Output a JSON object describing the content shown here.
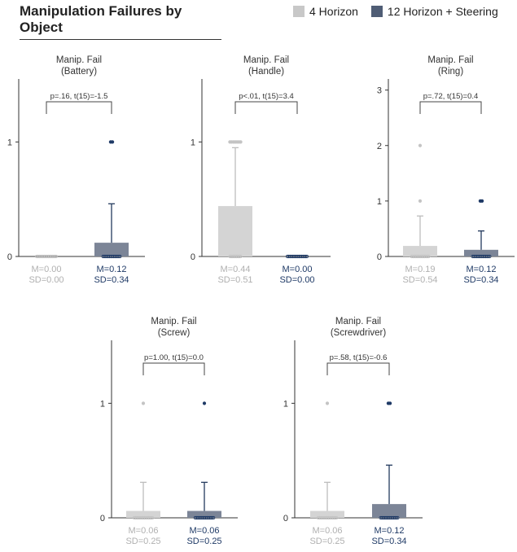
{
  "title": "Manipulation Failures by Object",
  "legend": [
    {
      "label": "4 Horizon",
      "color": "#c8c8c8"
    },
    {
      "label": "12 Horizon + Steering",
      "color": "#4f5d75"
    }
  ],
  "colors": {
    "bar_a": "#d4d4d4",
    "bar_b": "#7c8597",
    "err_a": "#bdbdbd",
    "err_b": "#243a5e",
    "label_a": "#b0b0b0",
    "label_b": "#1f3a66",
    "pt_a": "#c4c4c4",
    "pt_b": "#1f3a66"
  },
  "chart_data": [
    {
      "type": "bar",
      "title": "Manip. Fail\n(Battery)",
      "ylim": [
        0,
        1.55
      ],
      "yticks": [
        0,
        1
      ],
      "stat": "p=.16, t(15)=-1.5",
      "series": [
        {
          "name": "4 Horizon",
          "mean": 0.0,
          "sd": 0.0,
          "m_label": "M=0.00",
          "sd_label": "SD=0.00",
          "points": [
            0,
            0,
            0,
            0,
            0,
            0,
            0,
            0,
            0,
            0,
            0,
            0,
            0,
            0,
            0,
            0
          ]
        },
        {
          "name": "12 Horizon + Steering",
          "mean": 0.12,
          "sd": 0.34,
          "m_label": "M=0.12",
          "sd_label": "SD=0.34",
          "points": [
            1,
            1,
            0,
            0,
            0,
            0,
            0,
            0,
            0,
            0,
            0,
            0,
            0,
            0,
            0,
            0
          ]
        }
      ]
    },
    {
      "type": "bar",
      "title": "Manip. Fail\n(Handle)",
      "ylim": [
        0,
        1.55
      ],
      "yticks": [
        0,
        1
      ],
      "stat": "p<.01, t(15)=3.4",
      "series": [
        {
          "name": "4 Horizon",
          "mean": 0.44,
          "sd": 0.51,
          "m_label": "M=0.44",
          "sd_label": "SD=0.51",
          "points": [
            1,
            1,
            1,
            1,
            1,
            1,
            1,
            0,
            0,
            0,
            0,
            0,
            0,
            0,
            0,
            0
          ]
        },
        {
          "name": "12 Horizon + Steering",
          "mean": 0.0,
          "sd": 0.0,
          "m_label": "M=0.00",
          "sd_label": "SD=0.00",
          "points": [
            0,
            0,
            0,
            0,
            0,
            0,
            0,
            0,
            0,
            0,
            0,
            0,
            0,
            0,
            0,
            0
          ]
        }
      ]
    },
    {
      "type": "bar",
      "title": "Manip. Fail\n(Ring)",
      "ylim": [
        0,
        3.2
      ],
      "yticks": [
        0,
        1,
        2,
        3
      ],
      "stat": "p=.72, t(15)=0.4",
      "series": [
        {
          "name": "4 Horizon",
          "mean": 0.19,
          "sd": 0.54,
          "m_label": "M=0.19",
          "sd_label": "SD=0.54",
          "points": [
            2,
            1,
            0,
            0,
            0,
            0,
            0,
            0,
            0,
            0,
            0,
            0,
            0,
            0,
            0,
            0
          ]
        },
        {
          "name": "12 Horizon + Steering",
          "mean": 0.12,
          "sd": 0.34,
          "m_label": "M=0.12",
          "sd_label": "SD=0.34",
          "points": [
            1,
            1,
            0,
            0,
            0,
            0,
            0,
            0,
            0,
            0,
            0,
            0,
            0,
            0,
            0,
            0
          ]
        }
      ]
    },
    {
      "type": "bar",
      "title": "Manip. Fail\n(Screw)",
      "ylim": [
        0,
        1.55
      ],
      "yticks": [
        0,
        1
      ],
      "stat": "p=1.00, t(15)=0.0",
      "series": [
        {
          "name": "4 Horizon",
          "mean": 0.06,
          "sd": 0.25,
          "m_label": "M=0.06",
          "sd_label": "SD=0.25",
          "points": [
            1,
            0,
            0,
            0,
            0,
            0,
            0,
            0,
            0,
            0,
            0,
            0,
            0,
            0,
            0,
            0
          ]
        },
        {
          "name": "12 Horizon + Steering",
          "mean": 0.06,
          "sd": 0.25,
          "m_label": "M=0.06",
          "sd_label": "SD=0.25",
          "points": [
            1,
            0,
            0,
            0,
            0,
            0,
            0,
            0,
            0,
            0,
            0,
            0,
            0,
            0,
            0,
            0
          ]
        }
      ]
    },
    {
      "type": "bar",
      "title": "Manip. Fail\n(Screwdriver)",
      "ylim": [
        0,
        1.55
      ],
      "yticks": [
        0,
        1
      ],
      "stat": "p=.58, t(15)=-0.6",
      "series": [
        {
          "name": "4 Horizon",
          "mean": 0.06,
          "sd": 0.25,
          "m_label": "M=0.06",
          "sd_label": "SD=0.25",
          "points": [
            1,
            0,
            0,
            0,
            0,
            0,
            0,
            0,
            0,
            0,
            0,
            0,
            0,
            0,
            0,
            0
          ]
        },
        {
          "name": "12 Horizon + Steering",
          "mean": 0.12,
          "sd": 0.34,
          "m_label": "M=0.12",
          "sd_label": "SD=0.34",
          "points": [
            1,
            1,
            0,
            0,
            0,
            0,
            0,
            0,
            0,
            0,
            0,
            0,
            0,
            0,
            0,
            0
          ]
        }
      ]
    }
  ]
}
